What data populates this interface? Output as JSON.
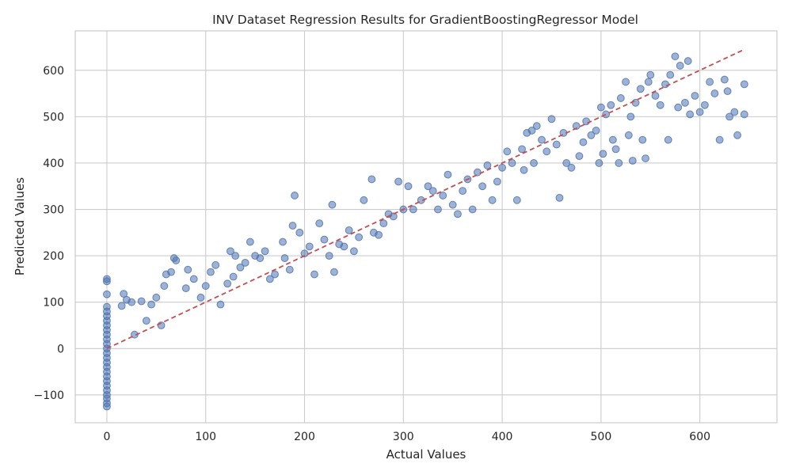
{
  "chart_data": {
    "type": "scatter",
    "title": "INV Dataset Regression Results for GradientBoostingRegressor Model",
    "xlabel": "Actual Values",
    "ylabel": "Predicted Values",
    "xlim": [
      -32,
      678
    ],
    "ylim": [
      -160,
      685
    ],
    "x_ticks": [
      0,
      100,
      200,
      300,
      400,
      500,
      600
    ],
    "y_ticks": [
      -100,
      0,
      100,
      200,
      300,
      400,
      500,
      600
    ],
    "grid": true,
    "point_color": "#4c72b0",
    "reference_line": {
      "style": "dashed",
      "color": "#c44e52",
      "from": [
        0,
        0
      ],
      "to": [
        645,
        645
      ]
    },
    "series": [
      {
        "points": [
          [
            0,
            -125
          ],
          [
            0,
            -118
          ],
          [
            0,
            -108
          ],
          [
            0,
            -100
          ],
          [
            0,
            -90
          ],
          [
            0,
            -80
          ],
          [
            0,
            -70
          ],
          [
            0,
            -60
          ],
          [
            0,
            -50
          ],
          [
            0,
            -40
          ],
          [
            0,
            -30
          ],
          [
            0,
            -20
          ],
          [
            0,
            -10
          ],
          [
            0,
            0
          ],
          [
            0,
            10
          ],
          [
            0,
            20
          ],
          [
            0,
            30
          ],
          [
            0,
            40
          ],
          [
            0,
            50
          ],
          [
            0,
            60
          ],
          [
            0,
            70
          ],
          [
            0,
            80
          ],
          [
            0,
            90
          ],
          [
            0,
            117
          ],
          [
            0,
            145
          ],
          [
            0,
            150
          ],
          [
            15,
            92
          ],
          [
            17,
            118
          ],
          [
            20,
            105
          ],
          [
            25,
            100
          ],
          [
            28,
            30
          ],
          [
            35,
            102
          ],
          [
            40,
            60
          ],
          [
            45,
            95
          ],
          [
            50,
            110
          ],
          [
            55,
            50
          ],
          [
            58,
            135
          ],
          [
            60,
            160
          ],
          [
            65,
            165
          ],
          [
            68,
            195
          ],
          [
            70,
            190
          ],
          [
            80,
            130
          ],
          [
            82,
            170
          ],
          [
            88,
            150
          ],
          [
            95,
            110
          ],
          [
            100,
            135
          ],
          [
            105,
            165
          ],
          [
            110,
            180
          ],
          [
            115,
            95
          ],
          [
            122,
            140
          ],
          [
            125,
            210
          ],
          [
            128,
            155
          ],
          [
            130,
            200
          ],
          [
            135,
            175
          ],
          [
            140,
            185
          ],
          [
            145,
            230
          ],
          [
            150,
            200
          ],
          [
            155,
            195
          ],
          [
            160,
            210
          ],
          [
            165,
            150
          ],
          [
            170,
            160
          ],
          [
            178,
            230
          ],
          [
            180,
            195
          ],
          [
            185,
            170
          ],
          [
            188,
            265
          ],
          [
            190,
            330
          ],
          [
            195,
            250
          ],
          [
            200,
            205
          ],
          [
            205,
            220
          ],
          [
            210,
            160
          ],
          [
            215,
            270
          ],
          [
            220,
            235
          ],
          [
            225,
            200
          ],
          [
            228,
            310
          ],
          [
            230,
            165
          ],
          [
            235,
            225
          ],
          [
            240,
            220
          ],
          [
            245,
            255
          ],
          [
            250,
            210
          ],
          [
            255,
            240
          ],
          [
            260,
            320
          ],
          [
            268,
            365
          ],
          [
            270,
            250
          ],
          [
            275,
            245
          ],
          [
            280,
            270
          ],
          [
            285,
            290
          ],
          [
            290,
            285
          ],
          [
            295,
            360
          ],
          [
            300,
            300
          ],
          [
            305,
            350
          ],
          [
            310,
            300
          ],
          [
            318,
            320
          ],
          [
            325,
            350
          ],
          [
            330,
            340
          ],
          [
            335,
            300
          ],
          [
            340,
            330
          ],
          [
            345,
            375
          ],
          [
            350,
            310
          ],
          [
            355,
            290
          ],
          [
            360,
            340
          ],
          [
            365,
            365
          ],
          [
            370,
            300
          ],
          [
            375,
            380
          ],
          [
            380,
            350
          ],
          [
            385,
            395
          ],
          [
            390,
            320
          ],
          [
            395,
            360
          ],
          [
            400,
            390
          ],
          [
            405,
            425
          ],
          [
            410,
            400
          ],
          [
            415,
            320
          ],
          [
            420,
            430
          ],
          [
            422,
            385
          ],
          [
            425,
            465
          ],
          [
            430,
            470
          ],
          [
            432,
            400
          ],
          [
            435,
            480
          ],
          [
            440,
            450
          ],
          [
            445,
            425
          ],
          [
            450,
            495
          ],
          [
            455,
            440
          ],
          [
            458,
            325
          ],
          [
            462,
            465
          ],
          [
            465,
            400
          ],
          [
            470,
            390
          ],
          [
            475,
            480
          ],
          [
            478,
            415
          ],
          [
            482,
            445
          ],
          [
            485,
            490
          ],
          [
            490,
            460
          ],
          [
            495,
            470
          ],
          [
            498,
            400
          ],
          [
            500,
            520
          ],
          [
            502,
            420
          ],
          [
            505,
            505
          ],
          [
            510,
            525
          ],
          [
            512,
            450
          ],
          [
            515,
            430
          ],
          [
            518,
            400
          ],
          [
            520,
            540
          ],
          [
            525,
            575
          ],
          [
            528,
            460
          ],
          [
            530,
            500
          ],
          [
            532,
            405
          ],
          [
            535,
            530
          ],
          [
            540,
            560
          ],
          [
            542,
            450
          ],
          [
            545,
            410
          ],
          [
            548,
            575
          ],
          [
            550,
            590
          ],
          [
            555,
            545
          ],
          [
            560,
            525
          ],
          [
            565,
            570
          ],
          [
            568,
            450
          ],
          [
            570,
            590
          ],
          [
            575,
            630
          ],
          [
            578,
            520
          ],
          [
            580,
            610
          ],
          [
            585,
            530
          ],
          [
            588,
            620
          ],
          [
            590,
            505
          ],
          [
            595,
            545
          ],
          [
            600,
            510
          ],
          [
            605,
            525
          ],
          [
            610,
            575
          ],
          [
            615,
            550
          ],
          [
            620,
            450
          ],
          [
            625,
            580
          ],
          [
            628,
            555
          ],
          [
            630,
            500
          ],
          [
            635,
            510
          ],
          [
            638,
            460
          ],
          [
            645,
            570
          ],
          [
            645,
            505
          ]
        ]
      }
    ]
  }
}
